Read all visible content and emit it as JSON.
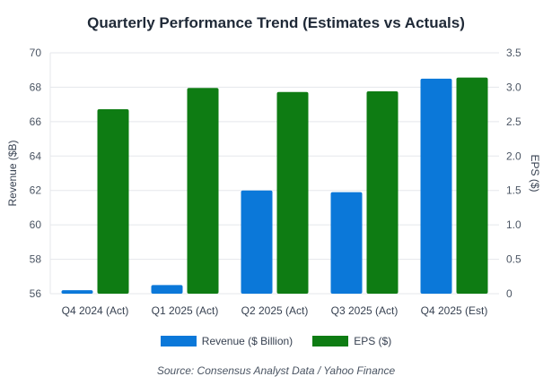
{
  "chart_data": {
    "type": "bar",
    "title": "Quarterly Performance Trend (Estimates vs Actuals)",
    "categories": [
      "Q4 2024 (Act)",
      "Q1 2025 (Act)",
      "Q2 2025 (Act)",
      "Q3 2025 (Act)",
      "Q4 2025 (Est)"
    ],
    "series": [
      {
        "name": "Revenue ($ Billion)",
        "axis": "left",
        "color": "#0b78d9",
        "values": [
          56.2,
          56.5,
          62.0,
          61.9,
          68.5
        ]
      },
      {
        "name": "EPS ($)",
        "axis": "right",
        "color": "#0e7c13",
        "values": [
          2.68,
          2.99,
          2.93,
          2.94,
          3.14
        ]
      }
    ],
    "ylabel_left": "Revenue ($B)",
    "ylabel_right": "EPS ($)",
    "ylim_left": [
      56,
      70
    ],
    "ylim_right": [
      0,
      3.5
    ],
    "yticks_left": [
      "56",
      "58",
      "60",
      "62",
      "64",
      "66",
      "68",
      "70"
    ],
    "yticks_right": [
      "0",
      "0.5",
      "1.0",
      "1.5",
      "2.0",
      "2.5",
      "3.0",
      "3.5"
    ],
    "grid": true,
    "legend_position": "bottom",
    "source": "Source: Consensus Analyst Data / Yahoo Finance"
  }
}
